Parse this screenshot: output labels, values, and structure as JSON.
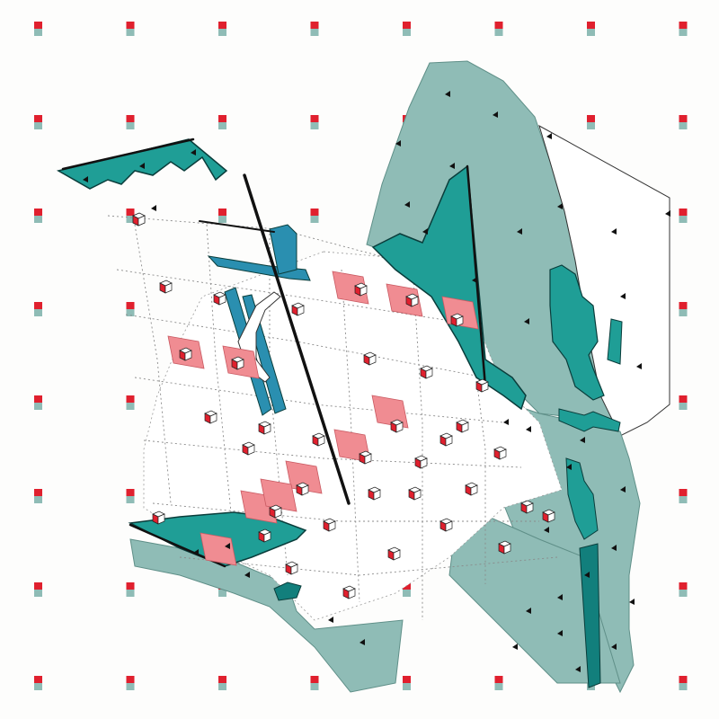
{
  "artwork": {
    "palette": {
      "paper": "#fdfdfc",
      "grey_teal": "#8fbcb6",
      "teal": "#1f9e96",
      "deep_teal": "#127f7c",
      "pink": "#f08c92",
      "red": "#e0202e",
      "ink": "#111111",
      "line": "#8a8a8a"
    },
    "grid_columns": 8,
    "grid_rows": 8
  }
}
